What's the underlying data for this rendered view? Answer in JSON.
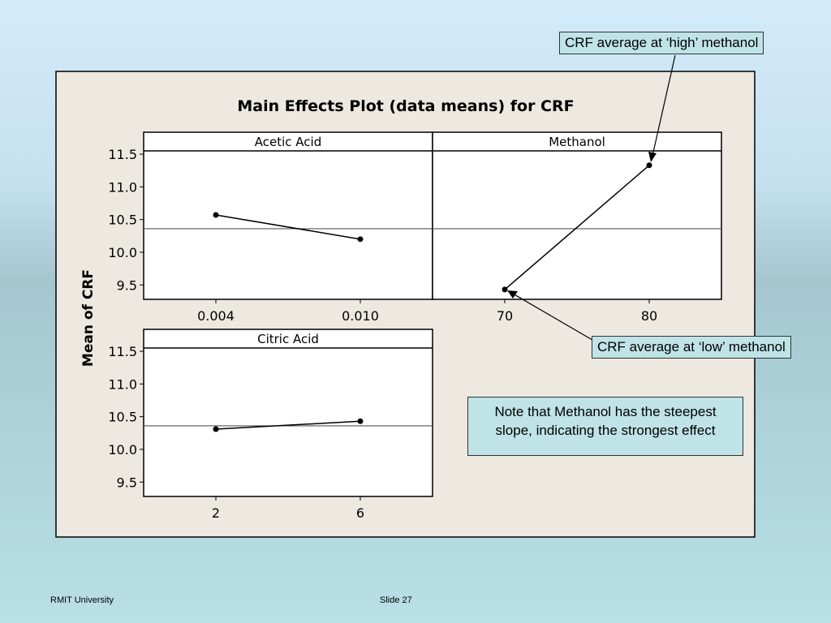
{
  "chart_data": {
    "type": "line",
    "title": "Main Effects Plot (data means) for CRF",
    "ylabel": "Mean of CRF",
    "ylim": [
      9.28,
      11.55
    ],
    "yticks": [
      "11.5",
      "11.0",
      "10.5",
      "10.0",
      "9.5"
    ],
    "grand_mean": 10.36,
    "panels": [
      {
        "name": "Acetic Acid",
        "x": [
          "0.004",
          "0.010"
        ],
        "values": [
          10.57,
          10.2
        ]
      },
      {
        "name": "Methanol",
        "x": [
          "70",
          "80"
        ],
        "values": [
          9.43,
          11.33
        ]
      },
      {
        "name": "Citric Acid",
        "x": [
          "2",
          "6"
        ],
        "values": [
          10.31,
          10.43
        ]
      }
    ]
  },
  "annotations": {
    "high": "CRF average at ‘high’ methanol",
    "low": "CRF average at ‘low’ methanol",
    "note_line1": "Note that Methanol has the steepest",
    "note_line2": "slope, indicating the strongest effect"
  },
  "footer": {
    "left": "RMIT University",
    "center": "Slide 27"
  }
}
